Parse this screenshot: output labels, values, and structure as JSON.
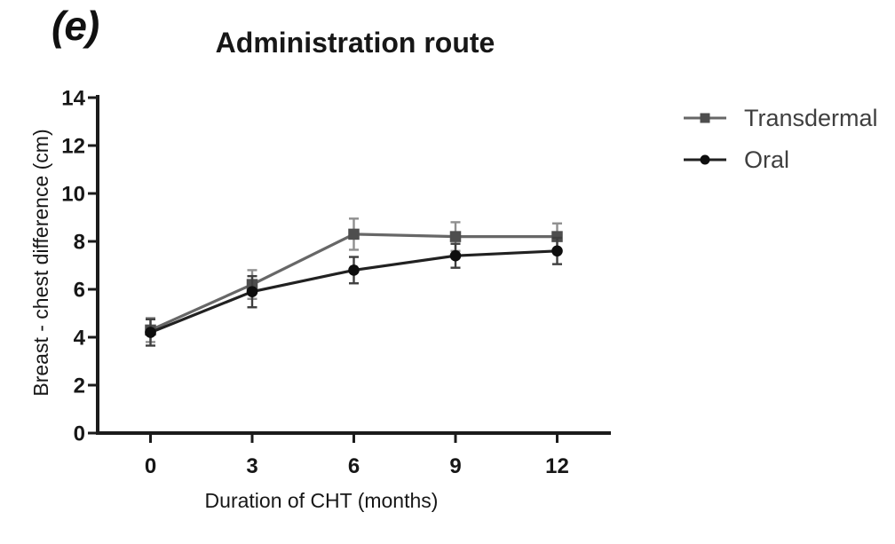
{
  "panel_label": "(e)",
  "title": "Administration route",
  "legend": {
    "items": [
      {
        "label": "Transdermal",
        "marker": "square"
      },
      {
        "label": "Oral",
        "marker": "circle"
      }
    ]
  },
  "colors": {
    "axis": "#1b1b1b",
    "tick_text": "#171717",
    "legend_text": "#3f3f3f"
  },
  "chart_data": {
    "type": "line",
    "title": "Administration route",
    "xlabel": "Duration of CHT (months)",
    "ylabel": "Breast - chest difference (cm)",
    "x": [
      0,
      3,
      6,
      9,
      12
    ],
    "xticks": [
      "0",
      "3",
      "6",
      "9",
      "12"
    ],
    "yticks": [
      0,
      2,
      4,
      6,
      8,
      10,
      12,
      14
    ],
    "ylim": [
      0,
      14
    ],
    "grid": false,
    "legend_position": "right",
    "error_bars": true,
    "series": [
      {
        "name": "Transdermal",
        "marker": "square",
        "line_color": "#676767",
        "marker_color": "#4e4e4e",
        "error_color": "#8f8f8f",
        "values": [
          4.3,
          6.2,
          8.3,
          8.2,
          8.2
        ],
        "errors": [
          0.5,
          0.6,
          0.65,
          0.6,
          0.55
        ]
      },
      {
        "name": "Oral",
        "marker": "circle",
        "line_color": "#212121",
        "marker_color": "#0e0e0e",
        "error_color": "#3f3f3f",
        "values": [
          4.2,
          5.9,
          6.8,
          7.4,
          7.6
        ],
        "errors": [
          0.55,
          0.65,
          0.55,
          0.5,
          0.55
        ]
      }
    ]
  }
}
